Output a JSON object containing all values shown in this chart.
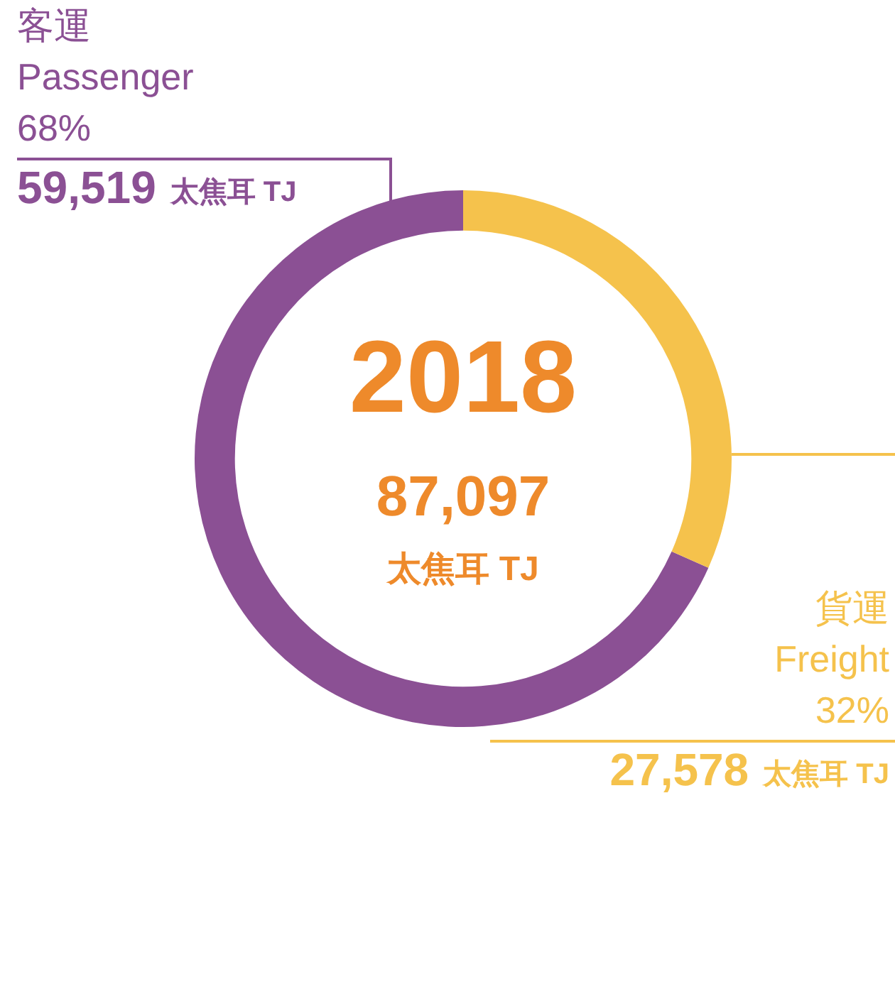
{
  "chart_data": {
    "type": "donut",
    "title": "2018",
    "subtitle": "87,097\n太焦耳 TJ",
    "categories": [
      "客運\nPassenger",
      "貨運\nFreight"
    ],
    "values": [
      59519,
      27578
    ],
    "colors": [
      "#8b5094",
      "#f5c24c"
    ],
    "value_labels": [
      "68%\n59,519 太焦耳 TJ",
      "32%\n27,578 太焦耳 TJ"
    ],
    "legend": false
  }
}
